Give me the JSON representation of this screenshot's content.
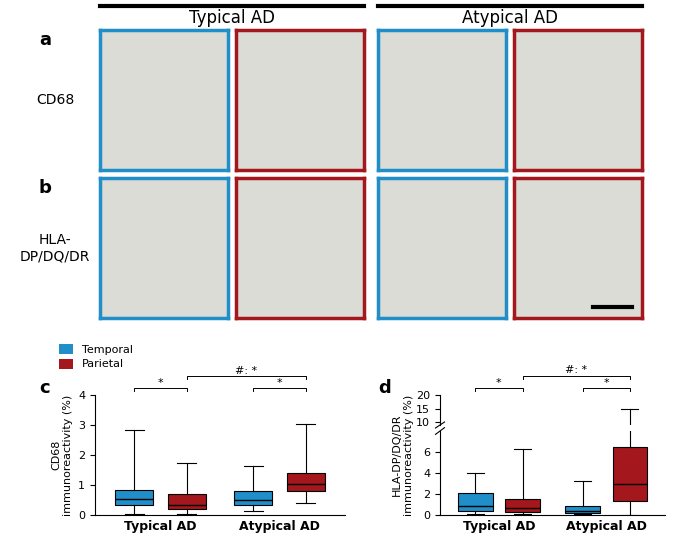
{
  "column_groups": [
    "Typical AD",
    "Atypical AD"
  ],
  "image_panels": {
    "columns": [
      [
        "Typical AD",
        "Temporal"
      ],
      [
        "Typical AD",
        "Parietal"
      ],
      [
        "Atypical AD",
        "Temporal"
      ],
      [
        "Atypical AD",
        "Parietal"
      ]
    ],
    "rows": [
      {
        "panel_label": "a",
        "label": "CD68"
      },
      {
        "panel_label": "b",
        "label": "HLA-\nDP/DQ/DR"
      }
    ]
  },
  "chart_data": [
    {
      "type": "box",
      "panel_label": "c",
      "y_label": "CD68\nimmunoreactivity (%)",
      "categories": [
        "Typical AD",
        "Atypical AD"
      ],
      "series": [
        {
          "name": "Temporal",
          "color": "#1f8ec9",
          "values": [
            {
              "min": 0.05,
              "q1": 0.35,
              "median": 0.55,
              "q3": 0.85,
              "max": 2.85
            },
            {
              "min": 0.15,
              "q1": 0.35,
              "median": 0.5,
              "q3": 0.8,
              "max": 1.65
            }
          ]
        },
        {
          "name": "Parietal",
          "color": "#a3171d",
          "values": [
            {
              "min": 0.05,
              "q1": 0.2,
              "median": 0.35,
              "q3": 0.7,
              "max": 1.75
            },
            {
              "min": 0.4,
              "q1": 0.8,
              "median": 1.05,
              "q3": 1.4,
              "max": 3.05
            }
          ]
        }
      ],
      "ylim": [
        0,
        4
      ],
      "yticks": [
        0,
        1,
        2,
        3,
        4
      ],
      "comparisons": [
        {
          "label": "*",
          "groups": [
            [
              "Typical AD",
              "Temporal"
            ],
            [
              "Typical AD",
              "Parietal"
            ]
          ]
        },
        {
          "label": "*",
          "groups": [
            [
              "Atypical AD",
              "Temporal"
            ],
            [
              "Atypical AD",
              "Parietal"
            ]
          ]
        },
        {
          "label": "#: *",
          "groups": [
            [
              "Typical AD",
              "Parietal"
            ],
            [
              "Atypical AD",
              "Parietal"
            ]
          ]
        }
      ]
    },
    {
      "type": "box",
      "panel_label": "d",
      "y_label": "HLA-DP/DQ/DR\nimmunoreactivity (%)",
      "categories": [
        "Typical AD",
        "Atypical AD"
      ],
      "series": [
        {
          "name": "Temporal",
          "color": "#1f8ec9",
          "values": [
            {
              "min": 0.05,
              "q1": 0.4,
              "median": 0.85,
              "q3": 2.1,
              "max": 4.0
            },
            {
              "min": 0.05,
              "q1": 0.2,
              "median": 0.4,
              "q3": 0.9,
              "max": 3.2
            }
          ]
        },
        {
          "name": "Parietal",
          "color": "#a3171d",
          "values": [
            {
              "min": 0.05,
              "q1": 0.3,
              "median": 0.65,
              "q3": 1.5,
              "max": 6.3
            },
            {
              "min": 0.0,
              "q1": 1.3,
              "median": 3.0,
              "q3": 6.5,
              "max": 15.0
            }
          ]
        }
      ],
      "y_segments": [
        {
          "ylim": [
            0,
            8
          ],
          "yticks": [
            0,
            2,
            4,
            6
          ]
        },
        {
          "ylim": [
            9,
            20
          ],
          "yticks": [
            10,
            15,
            20
          ]
        }
      ],
      "comparisons": [
        {
          "label": "*",
          "groups": [
            [
              "Typical AD",
              "Temporal"
            ],
            [
              "Typical AD",
              "Parietal"
            ]
          ]
        },
        {
          "label": "*",
          "groups": [
            [
              "Atypical AD",
              "Temporal"
            ],
            [
              "Atypical AD",
              "Parietal"
            ]
          ]
        },
        {
          "label": "#: *",
          "groups": [
            [
              "Typical AD",
              "Parietal"
            ],
            [
              "Atypical AD",
              "Parietal"
            ]
          ]
        }
      ]
    }
  ]
}
